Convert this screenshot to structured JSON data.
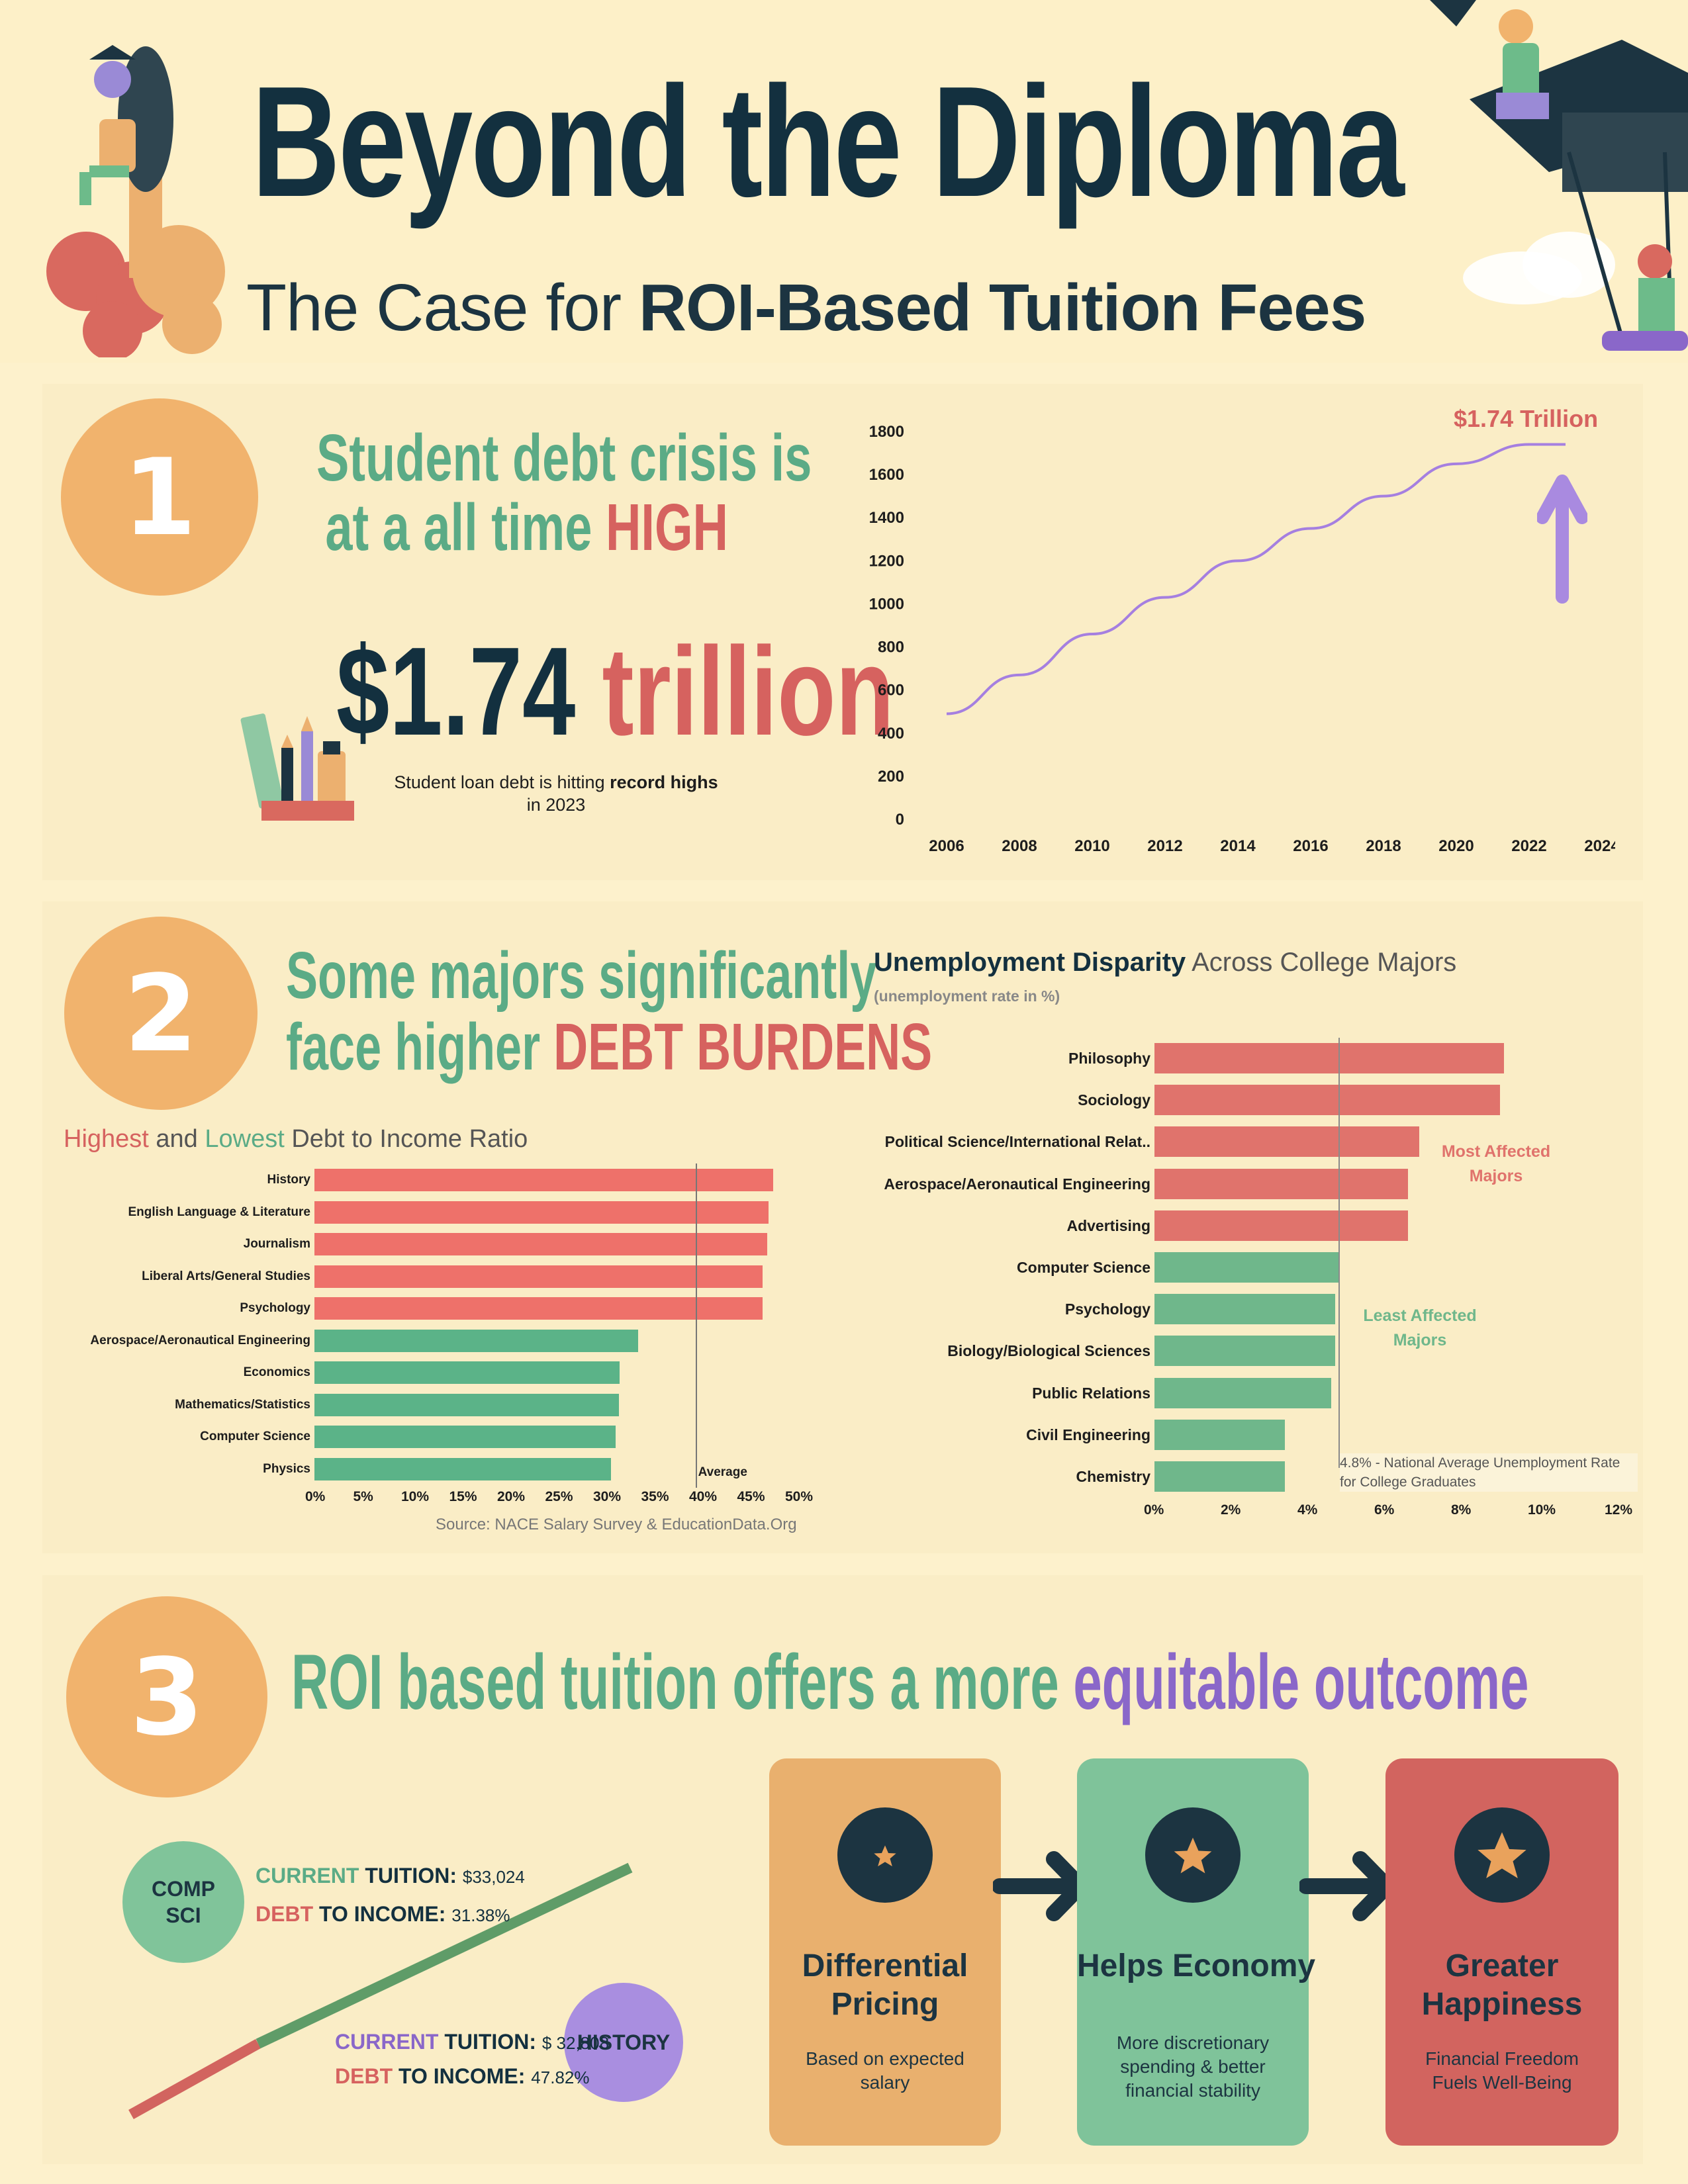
{
  "header": {
    "title": "Beyond the Diploma",
    "subtitle_prefix": "The Case for ",
    "subtitle_bold": "ROI-Based Tuition Fees"
  },
  "section1": {
    "number": "1",
    "headline_line1": "Student debt crisis is",
    "headline_line2_prefix": "at a all time ",
    "headline_line2_emph": "HIGH",
    "stat_value": "$1.74",
    "stat_unit": "trillion",
    "caption_prefix": "Student loan debt is hitting ",
    "caption_bold": "record highs",
    "caption_line2": "in 2023",
    "chart_annotation": "$1.74 Trillion"
  },
  "section2": {
    "number": "2",
    "headline_line1": "Some majors significantly",
    "headline_line2_prefix": "face higher ",
    "headline_line2_emph": "DEBT BURDENS",
    "debt_title_high": "Highest",
    "debt_title_and": " and ",
    "debt_title_low": "Lowest",
    "debt_title_rest": " Debt to Income Ratio",
    "debt_avg_label": "Average",
    "debt_source": "Source: NACE Salary Survey & EducationData.Org",
    "unemp_title_bold": "Unemployment Disparity",
    "unemp_title_rest": " Across College Majors",
    "unemp_subtitle": "(unemployment rate in %)",
    "most_affected": "Most Affected\nMajors",
    "least_affected": "Least Affected\nMajors",
    "avg_note": "4.8% - National Average Unemployment Rate\nfor College Graduates"
  },
  "section3": {
    "number": "3",
    "headline_prefix": "ROI based tuition offers a more ",
    "headline_emph": "equitable outcome",
    "compsci_badge": "COMP\nSCI",
    "compsci_tuition_word1": "CURRENT",
    "compsci_tuition_word2": " TUITION:",
    "compsci_tuition_value": "$33,024",
    "compsci_debt_word1": "DEBT",
    "compsci_debt_word2": " TO INCOME:",
    "compsci_debt_value": "31.38%",
    "history_badge": "HISTORY",
    "history_tuition_word1": "CURRENT",
    "history_tuition_word2": " TUITION:",
    "history_tuition_value": "$ 32,808",
    "history_debt_word1": "DEBT",
    "history_debt_word2": " TO INCOME:",
    "history_debt_value": "47.82%",
    "cards": [
      {
        "title": "Differential\nPricing",
        "text": "Based on expected\nsalary",
        "color": "#e9b06e"
      },
      {
        "title": "Helps Economy",
        "text": "More discretionary\nspending & better\nfinancial stability",
        "color": "#7fc39a"
      },
      {
        "title": "Greater\nHappiness",
        "text": "Financial Freedom\nFuels Well-Being",
        "color": "#d2645f"
      }
    ]
  },
  "chart_data": [
    {
      "type": "line",
      "title": "",
      "xlabel": "",
      "ylabel": "",
      "x": [
        2006,
        2008,
        2010,
        2012,
        2014,
        2016,
        2018,
        2020,
        2022,
        2023
      ],
      "series": [
        {
          "values": [
            490,
            670,
            860,
            1030,
            1200,
            1350,
            1500,
            1650,
            1740,
            1740
          ],
          "color": "#a57fe0"
        }
      ],
      "x_ticks": [
        "2006",
        "2008",
        "2010",
        "2012",
        "2014",
        "2016",
        "2018",
        "2020",
        "2022",
        "2024"
      ],
      "y_ticks": [
        "0",
        "200",
        "400",
        "600",
        "800",
        "1000",
        "1200",
        "1400",
        "1600",
        "1800"
      ],
      "xlim": [
        2006,
        2024
      ],
      "ylim": [
        0,
        1800
      ],
      "grid": false
    },
    {
      "type": "bar",
      "orientation": "horizontal",
      "title": "Highest and Lowest Debt to Income Ratio",
      "categories": [
        "History",
        "English Language & Literature",
        "Journalism",
        "Liberal Arts/General Studies",
        "Psychology",
        "Aerospace/Aeronautical Engineering",
        "Economics",
        "Mathematics/Statistics",
        "Computer Science",
        "Physics"
      ],
      "values": [
        47.8,
        47.3,
        47.2,
        46.7,
        46.7,
        33.7,
        31.8,
        31.7,
        31.4,
        30.9
      ],
      "group": [
        "high",
        "high",
        "high",
        "high",
        "high",
        "low",
        "low",
        "low",
        "low",
        "low"
      ],
      "colors": {
        "high": "#ee716a",
        "low": "#5bb388"
      },
      "reference_line": {
        "value": 39.7,
        "label": "Average"
      },
      "x_ticks": [
        "0%",
        "5%",
        "10%",
        "15%",
        "20%",
        "25%",
        "30%",
        "35%",
        "40%",
        "45%",
        "50%"
      ],
      "xlim": [
        0,
        50
      ],
      "source": "Source: NACE Salary Survey & EducationData.Org"
    },
    {
      "type": "bar",
      "orientation": "horizontal",
      "title": "Unemployment Disparity Across College Majors",
      "subtitle": "(unemployment rate in %)",
      "categories": [
        "Philosophy",
        "Sociology",
        "Political Science/International Relat..",
        "Aerospace/Aeronautical Engineering",
        "Advertising",
        "Computer Science",
        "Psychology",
        "Biology/Biological Sciences",
        "Public Relations",
        "Civil Engineering",
        "Chemistry"
      ],
      "values": [
        9.1,
        9.0,
        6.9,
        6.6,
        6.6,
        4.8,
        4.7,
        4.7,
        4.6,
        3.4,
        3.4
      ],
      "group": [
        "most",
        "most",
        "most",
        "most",
        "most",
        "least",
        "least",
        "least",
        "least",
        "least",
        "least"
      ],
      "colors": {
        "most": "#e0736c",
        "least": "#6fb78b"
      },
      "reference_line": {
        "value": 4.8
      },
      "x_ticks": [
        "0%",
        "2%",
        "4%",
        "6%",
        "8%",
        "10%",
        "12%"
      ],
      "xlim": [
        0,
        12
      ]
    }
  ]
}
